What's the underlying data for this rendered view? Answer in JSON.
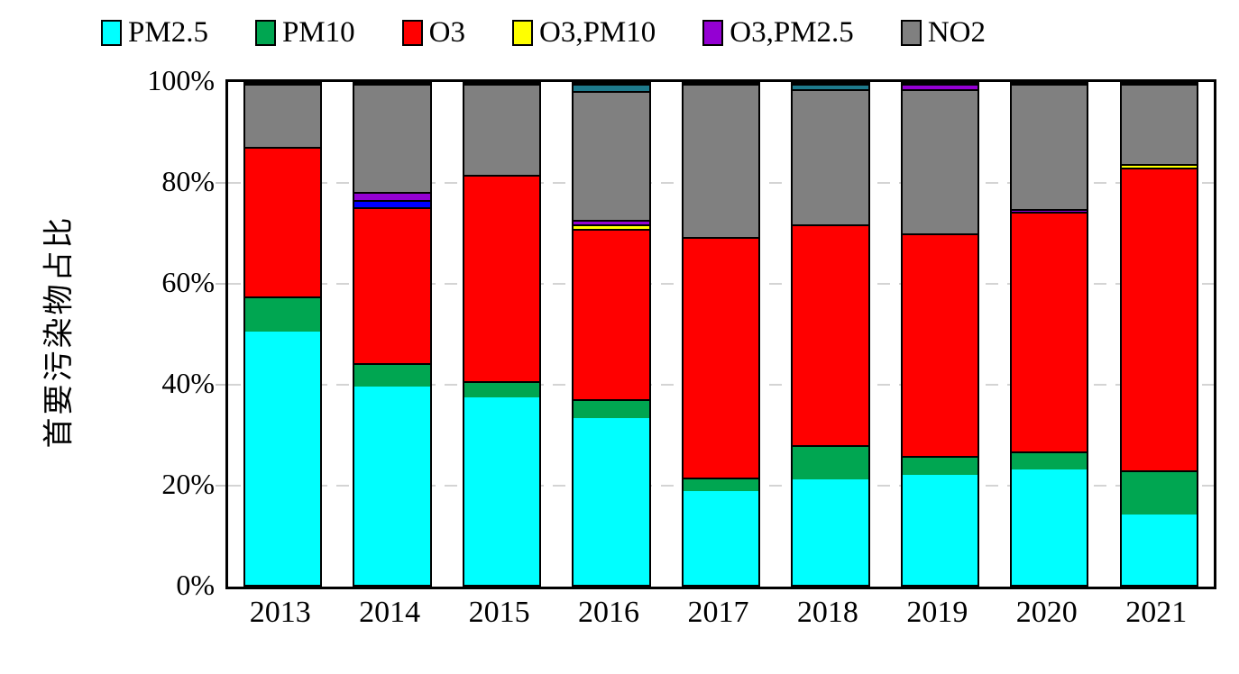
{
  "chart_data": {
    "type": "bar",
    "subtype": "stacked-percentage",
    "title": "",
    "ylabel": "首要污染物占比",
    "xlabel": "",
    "ylim": [
      0,
      100
    ],
    "y_tick_labels": [
      "0%",
      "20%",
      "40%",
      "60%",
      "80%",
      "100%"
    ],
    "y_tick_values": [
      0,
      20,
      40,
      60,
      80,
      100
    ],
    "grid": "dashed horizontal at 20/40/60/80",
    "legend_position": "top",
    "legend": [
      {
        "label": "PM2.5",
        "color": "#00FFFF"
      },
      {
        "label": "PM10",
        "color": "#00A651"
      },
      {
        "label": "O3",
        "color": "#FF0000"
      },
      {
        "label": "O3,PM10",
        "color": "#FFFF00"
      },
      {
        "label": "O3,PM2.5",
        "color": "#9400D3"
      },
      {
        "label": "NO2",
        "color": "#808080"
      }
    ],
    "colors": {
      "PM2.5": "#00FFFF",
      "PM10": "#00A651",
      "O3": "#FF0000",
      "O3,PM10": "#FFFF00",
      "O3,PM2.5": "#9400D3",
      "NO2": "#808080",
      "unlabeled-blue": "#0000FF",
      "unlabeled-teal": "#1E7A8C"
    },
    "categories": [
      "2013",
      "2014",
      "2015",
      "2016",
      "2017",
      "2018",
      "2019",
      "2020",
      "2021"
    ],
    "bars": [
      {
        "year": "2013",
        "segments": [
          {
            "series": "PM2.5",
            "value": 50.5
          },
          {
            "series": "PM10",
            "value": 7.0
          },
          {
            "series": "O3",
            "value": 30.0
          },
          {
            "series": "NO2",
            "value": 12.5
          }
        ]
      },
      {
        "year": "2014",
        "segments": [
          {
            "series": "PM2.5",
            "value": 39.5
          },
          {
            "series": "PM10",
            "value": 4.8
          },
          {
            "series": "O3",
            "value": 31.1
          },
          {
            "series": "unlabeled-blue",
            "value": 1.4
          },
          {
            "series": "O3,PM2.5",
            "value": 1.6
          },
          {
            "series": "NO2",
            "value": 21.6
          }
        ]
      },
      {
        "year": "2015",
        "segments": [
          {
            "series": "PM2.5",
            "value": 37.5
          },
          {
            "series": "PM10",
            "value": 3.2
          },
          {
            "series": "O3",
            "value": 41.2
          },
          {
            "series": "NO2",
            "value": 18.1
          }
        ]
      },
      {
        "year": "2016",
        "segments": [
          {
            "series": "PM2.5",
            "value": 33.3
          },
          {
            "series": "PM10",
            "value": 3.7
          },
          {
            "series": "O3",
            "value": 34.1
          },
          {
            "series": "O3,PM10",
            "value": 0.9
          },
          {
            "series": "O3,PM2.5",
            "value": 0.9
          },
          {
            "series": "NO2",
            "value": 25.6
          },
          {
            "series": "unlabeled-teal",
            "value": 1.5
          }
        ]
      },
      {
        "year": "2017",
        "segments": [
          {
            "series": "PM2.5",
            "value": 18.7
          },
          {
            "series": "PM10",
            "value": 2.7
          },
          {
            "series": "O3",
            "value": 48.0
          },
          {
            "series": "NO2",
            "value": 30.6
          }
        ]
      },
      {
        "year": "2018",
        "segments": [
          {
            "series": "PM2.5",
            "value": 21.0
          },
          {
            "series": "PM10",
            "value": 6.9
          },
          {
            "series": "O3",
            "value": 44.0
          },
          {
            "series": "NO2",
            "value": 27.1
          },
          {
            "series": "unlabeled-teal",
            "value": 1.0
          }
        ]
      },
      {
        "year": "2019",
        "segments": [
          {
            "series": "PM2.5",
            "value": 22.0
          },
          {
            "series": "PM10",
            "value": 3.8
          },
          {
            "series": "O3",
            "value": 44.3
          },
          {
            "series": "NO2",
            "value": 28.9
          },
          {
            "series": "O3,PM2.5",
            "value": 1.0
          }
        ]
      },
      {
        "year": "2020",
        "segments": [
          {
            "series": "PM2.5",
            "value": 23.0
          },
          {
            "series": "PM10",
            "value": 3.7
          },
          {
            "series": "O3",
            "value": 47.8
          },
          {
            "series": "O3,PM2.5",
            "value": 0.5
          },
          {
            "series": "NO2",
            "value": 25.0
          }
        ]
      },
      {
        "year": "2021",
        "segments": [
          {
            "series": "PM2.5",
            "value": 14.0
          },
          {
            "series": "PM10",
            "value": 8.8
          },
          {
            "series": "O3",
            "value": 60.4
          },
          {
            "series": "O3,PM10",
            "value": 0.8
          },
          {
            "series": "NO2",
            "value": 16.0
          }
        ]
      }
    ]
  }
}
